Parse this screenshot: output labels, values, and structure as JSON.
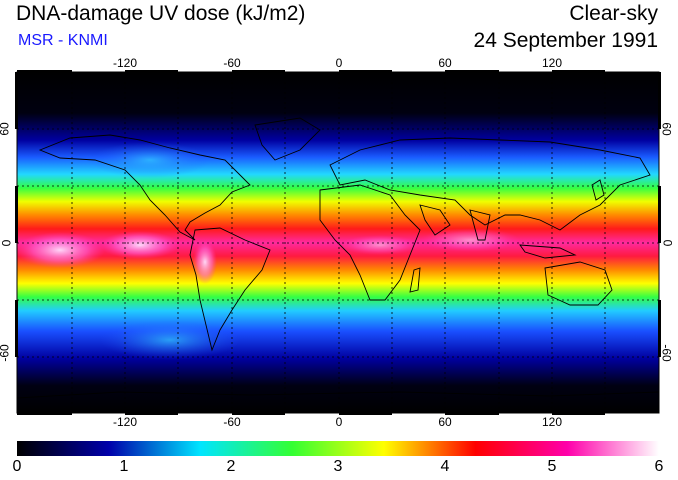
{
  "header": {
    "title": "DNA-damage UV dose (kJ/m2)",
    "subtitle": "MSR - KNMI",
    "condition": "Clear-sky",
    "date": "24 September 1991"
  },
  "map": {
    "lon_ticks": [
      "-120",
      "-60",
      "0",
      "60",
      "120"
    ],
    "lat_ticks_left": [
      "60",
      "0",
      "-60"
    ],
    "lat_ticks_right": [
      "60",
      "0",
      "-60"
    ]
  },
  "colorbar": {
    "labels": [
      "0",
      "1",
      "2",
      "3",
      "4",
      "5",
      "6"
    ],
    "colors": [
      "#000000",
      "#0000aa",
      "#00e5ff",
      "#33ff33",
      "#ffff00",
      "#ff0000",
      "#ff00aa",
      "#ffffff"
    ]
  }
}
